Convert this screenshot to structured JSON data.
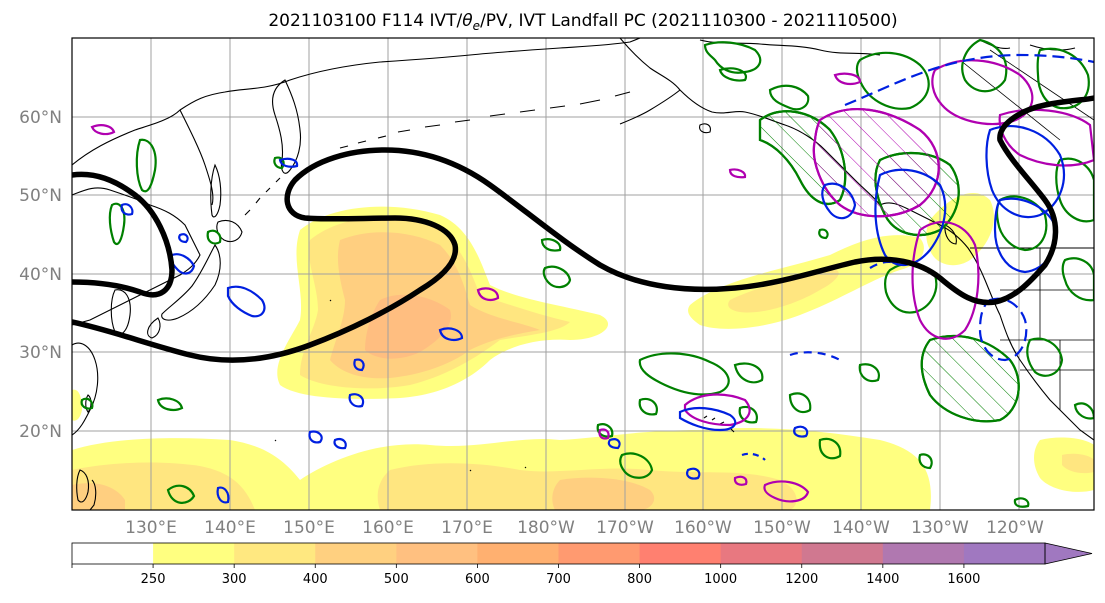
{
  "title": {
    "prefix": "2021103100 F114 IVT/",
    "theta": "θ",
    "theta_sub": "e",
    "suffix": "/PV, IVT Landfall PC (2021110300 - 2021110500)"
  },
  "map": {
    "lat_labels": [
      "60°N",
      "50°N",
      "40°N",
      "30°N",
      "20°N"
    ],
    "lon_labels": [
      "130°E",
      "140°E",
      "150°E",
      "160°E",
      "170°E",
      "180°W",
      "170°W",
      "160°W",
      "150°W",
      "140°W",
      "130°W",
      "120°W"
    ],
    "grid": true,
    "ocean_color": "#ffffff",
    "land_outline_color": "#000000"
  },
  "colorbar": {
    "ticks": [
      "250",
      "300",
      "400",
      "500",
      "600",
      "700",
      "800",
      "1000",
      "1200",
      "1400",
      "1600"
    ],
    "colors": [
      "#ffffff",
      "#ffff80",
      "#ffe880",
      "#ffd080",
      "#ffc080",
      "#ffb070",
      "#ff9a70",
      "#ff8070",
      "#e87880",
      "#d07890",
      "#b078b0",
      "#a078c0"
    ],
    "extend": "max"
  },
  "legend_colors": {
    "ivt_landfall_pc": "#000000",
    "theta_e": "#008000",
    "pv_positive": "#c000c0",
    "pv_negative": "#0000ff"
  }
}
